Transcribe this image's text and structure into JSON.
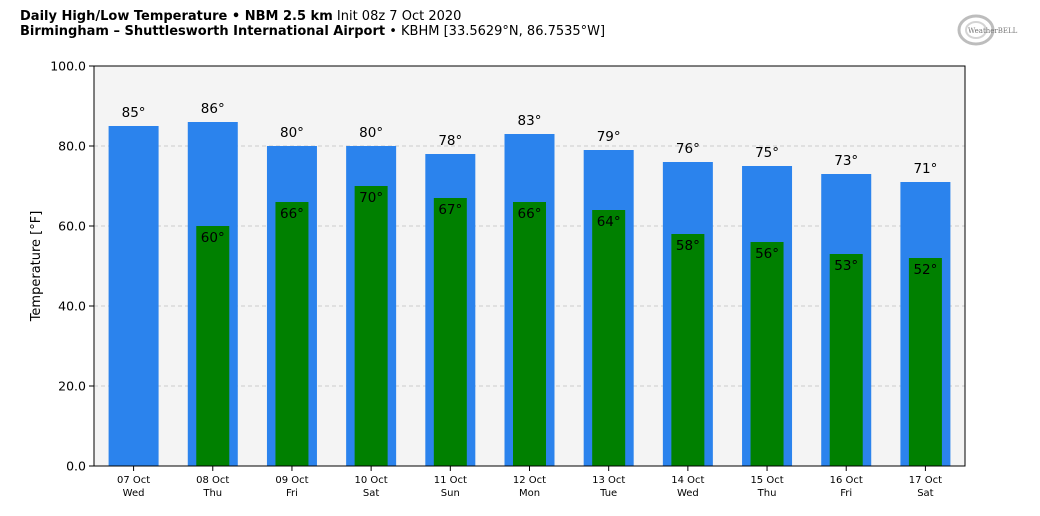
{
  "header": {
    "title_bold": "Daily High/Low Temperature • NBM 2.5 km",
    "init": "Init 08z 7 Oct 2020",
    "location_bold": "Birmingham – Shuttlesworth International Airport",
    "station": "• KBHM [33.5629°N, 86.7535°W]"
  },
  "logo": {
    "text": "WeatherBELL"
  },
  "chart_data": {
    "type": "bar",
    "ylabel": "Temperature [°F]",
    "ylim": [
      0,
      100
    ],
    "yticks": [
      "0.0",
      "20.0",
      "40.0",
      "60.0",
      "80.0",
      "100.0"
    ],
    "grid": true,
    "categories": [
      {
        "date": "07 Oct",
        "day": "Wed"
      },
      {
        "date": "08 Oct",
        "day": "Thu"
      },
      {
        "date": "09 Oct",
        "day": "Fri"
      },
      {
        "date": "10 Oct",
        "day": "Sat"
      },
      {
        "date": "11 Oct",
        "day": "Sun"
      },
      {
        "date": "12 Oct",
        "day": "Mon"
      },
      {
        "date": "13 Oct",
        "day": "Tue"
      },
      {
        "date": "14 Oct",
        "day": "Wed"
      },
      {
        "date": "15 Oct",
        "day": "Thu"
      },
      {
        "date": "16 Oct",
        "day": "Fri"
      },
      {
        "date": "17 Oct",
        "day": "Sat"
      }
    ],
    "series": [
      {
        "key": "high",
        "color": "#2b83ed",
        "values": [
          85,
          86,
          80,
          80,
          78,
          83,
          79,
          76,
          75,
          73,
          71
        ],
        "labels": [
          "85°",
          "86°",
          "80°",
          "80°",
          "78°",
          "83°",
          "79°",
          "76°",
          "75°",
          "73°",
          "71°"
        ]
      },
      {
        "key": "low",
        "color": "#008000",
        "values": [
          null,
          60,
          66,
          70,
          67,
          66,
          64,
          58,
          56,
          53,
          52
        ],
        "labels": [
          "",
          "60°",
          "66°",
          "70°",
          "67°",
          "66°",
          "64°",
          "58°",
          "56°",
          "53°",
          "52°"
        ]
      }
    ]
  }
}
